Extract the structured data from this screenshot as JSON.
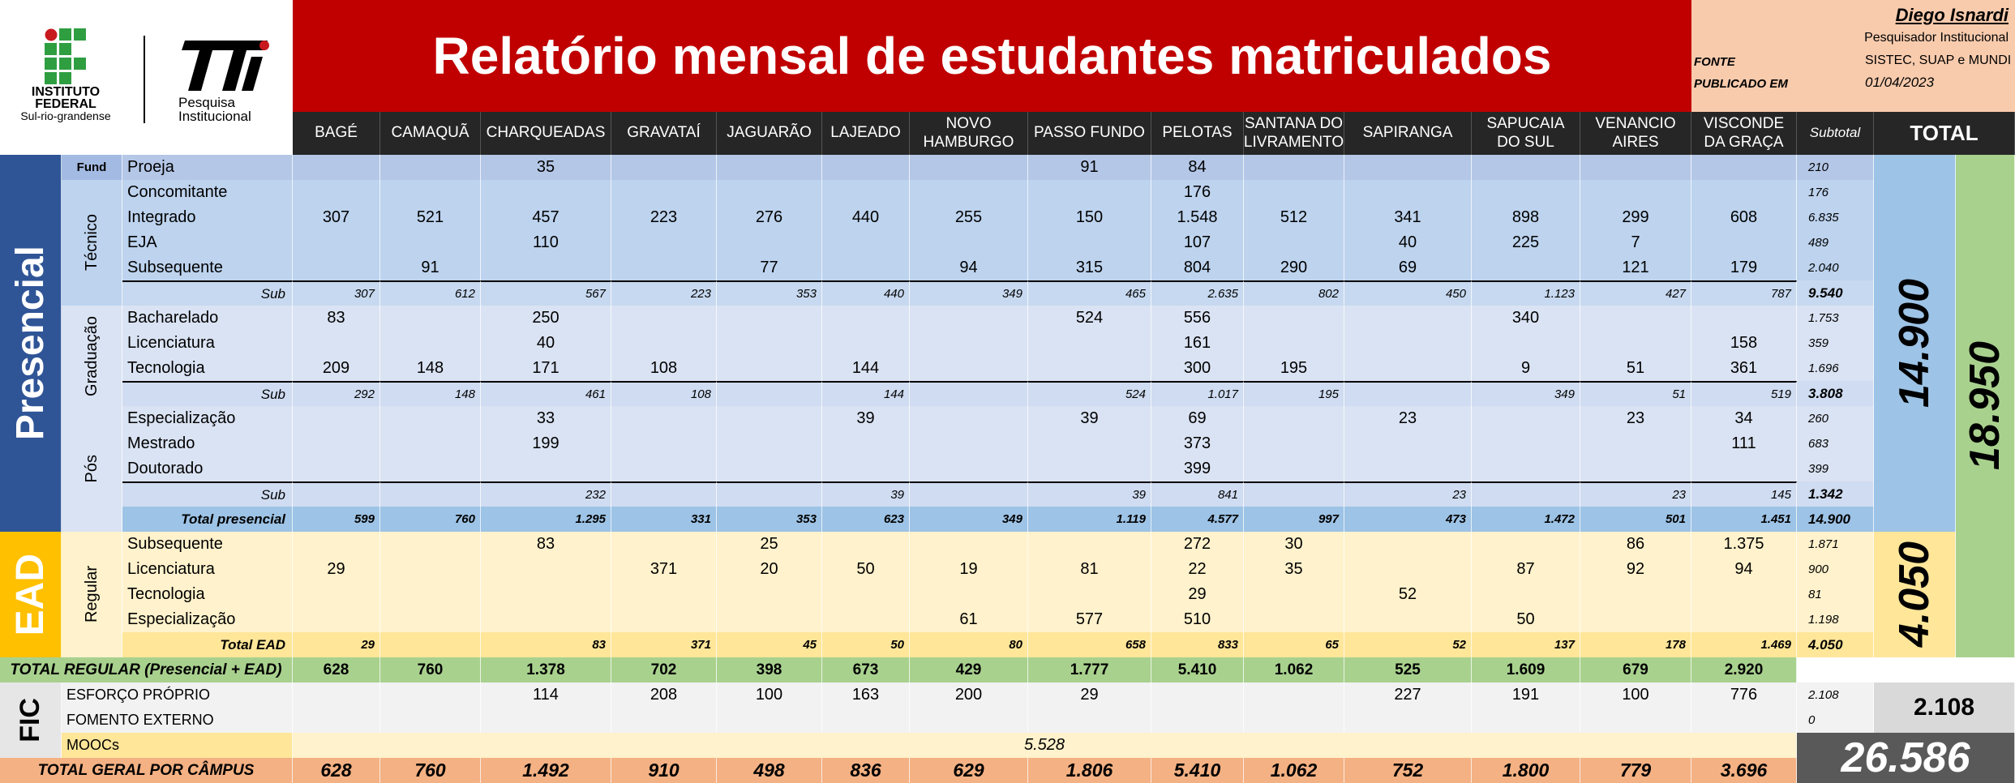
{
  "header": {
    "institution": [
      "INSTITUTO",
      "FEDERAL",
      "Sul-rio-grandense"
    ],
    "unit": [
      "Pesquisa",
      "Institucional"
    ],
    "title": "Relatório mensal de estudantes matriculados",
    "author": "Diego Isnardi",
    "role": "Pesquisador Institucional",
    "source_label": "FONTE",
    "source": "SISTEC, SUAP e MUNDI",
    "published_label": "PUBLICADO EM",
    "published": "01/04/2023"
  },
  "table": {
    "columns": [
      "BAGÉ",
      "CAMAQUÃ",
      "CHARQUEADAS",
      "GRAVATAÍ",
      "JAGUARÃO",
      "LAJEADO",
      "NOVO HAMBURGO",
      "PASSO FUNDO",
      "PELOTAS",
      "SANTANA DO LIVRAMENTO",
      "SAPIRANGA",
      "SAPUCAIA DO SUL",
      "VENANCIO AIRES",
      "VISCONDE DA GRAÇA"
    ],
    "subtotal_header": "Subtotal",
    "total_header": "TOTAL",
    "presencial": {
      "label": "Presencial",
      "total": "14.900",
      "fund": {
        "label": "Fund",
        "rows": [
          {
            "label": "Proeja",
            "values": [
              null,
              null,
              "35",
              null,
              null,
              null,
              null,
              "91",
              "84",
              null,
              null,
              null,
              null,
              null
            ],
            "subtotal": "210"
          }
        ]
      },
      "tecnico": {
        "label": "Técnico",
        "rows": [
          {
            "label": "Concomitante",
            "values": [
              null,
              null,
              null,
              null,
              null,
              null,
              null,
              null,
              "176",
              null,
              null,
              null,
              null,
              null
            ],
            "subtotal": "176"
          },
          {
            "label": "Integrado",
            "values": [
              "307",
              "521",
              "457",
              "223",
              "276",
              "440",
              "255",
              "150",
              "1.548",
              "512",
              "341",
              "898",
              "299",
              "608"
            ],
            "subtotal": "6.835"
          },
          {
            "label": "EJA",
            "values": [
              null,
              null,
              "110",
              null,
              null,
              null,
              null,
              null,
              "107",
              null,
              "40",
              "225",
              "7",
              null
            ],
            "subtotal": "489"
          },
          {
            "label": "Subsequente",
            "values": [
              null,
              "91",
              null,
              null,
              "77",
              null,
              "94",
              "315",
              "804",
              "290",
              "69",
              null,
              "121",
              "179"
            ],
            "subtotal": "2.040"
          }
        ],
        "sub": {
          "label": "Sub",
          "values": [
            "307",
            "612",
            "567",
            "223",
            "353",
            "440",
            "349",
            "465",
            "2.635",
            "802",
            "450",
            "1.123",
            "427",
            "787"
          ],
          "subtotal": "9.540"
        }
      },
      "graduacao": {
        "label": "Graduação",
        "rows": [
          {
            "label": "Bacharelado",
            "values": [
              "83",
              null,
              "250",
              null,
              null,
              null,
              null,
              "524",
              "556",
              null,
              null,
              "340",
              null,
              null
            ],
            "subtotal": "1.753"
          },
          {
            "label": "Licenciatura",
            "values": [
              null,
              null,
              "40",
              null,
              null,
              null,
              null,
              null,
              "161",
              null,
              null,
              null,
              null,
              "158"
            ],
            "subtotal": "359"
          },
          {
            "label": "Tecnologia",
            "values": [
              "209",
              "148",
              "171",
              "108",
              null,
              "144",
              null,
              null,
              "300",
              "195",
              null,
              "9",
              "51",
              "361"
            ],
            "subtotal": "1.696"
          }
        ],
        "sub": {
          "label": "Sub",
          "values": [
            "292",
            "148",
            "461",
            "108",
            null,
            "144",
            null,
            "524",
            "1.017",
            "195",
            null,
            "349",
            "51",
            "519"
          ],
          "subtotal": "3.808"
        }
      },
      "pos": {
        "label": "Pós",
        "rows": [
          {
            "label": "Especialização",
            "values": [
              null,
              null,
              "33",
              null,
              null,
              "39",
              null,
              "39",
              "69",
              null,
              "23",
              null,
              "23",
              "34"
            ],
            "subtotal": "260"
          },
          {
            "label": "Mestrado",
            "values": [
              null,
              null,
              "199",
              null,
              null,
              null,
              null,
              null,
              "373",
              null,
              null,
              null,
              null,
              "111"
            ],
            "subtotal": "683"
          },
          {
            "label": "Doutorado",
            "values": [
              null,
              null,
              null,
              null,
              null,
              null,
              null,
              null,
              "399",
              null,
              null,
              null,
              null,
              null
            ],
            "subtotal": "399"
          }
        ],
        "sub": {
          "label": "Sub",
          "values": [
            null,
            null,
            "232",
            null,
            null,
            "39",
            null,
            "39",
            "841",
            null,
            "23",
            null,
            "23",
            "145"
          ],
          "subtotal": "1.342"
        }
      },
      "total_row": {
        "label": "Total presencial",
        "values": [
          "599",
          "760",
          "1.295",
          "331",
          "353",
          "623",
          "349",
          "1.119",
          "4.577",
          "997",
          "473",
          "1.472",
          "501",
          "1.451"
        ],
        "subtotal": "14.900"
      }
    },
    "ead": {
      "label": "EAD",
      "total": "4.050",
      "regular": {
        "label": "Regular",
        "rows": [
          {
            "label": "Subsequente",
            "values": [
              null,
              null,
              "83",
              null,
              "25",
              null,
              null,
              null,
              "272",
              "30",
              null,
              null,
              "86",
              "1.375"
            ],
            "subtotal": "1.871"
          },
          {
            "label": "Licenciatura",
            "values": [
              "29",
              null,
              null,
              "371",
              "20",
              "50",
              "19",
              "81",
              "22",
              "35",
              null,
              "87",
              "92",
              "94"
            ],
            "subtotal": "900"
          },
          {
            "label": "Tecnologia",
            "values": [
              null,
              null,
              null,
              null,
              null,
              null,
              null,
              null,
              "29",
              null,
              "52",
              null,
              null,
              null
            ],
            "subtotal": "81"
          },
          {
            "label": "Especialização",
            "values": [
              null,
              null,
              null,
              null,
              null,
              null,
              "61",
              "577",
              "510",
              null,
              null,
              "50",
              null,
              null
            ],
            "subtotal": "1.198"
          }
        ]
      },
      "total_row": {
        "label": "Total EAD",
        "values": [
          "29",
          null,
          "83",
          "371",
          "45",
          "50",
          "80",
          "658",
          "833",
          "65",
          "52",
          "137",
          "178",
          "1.469"
        ],
        "subtotal": "4.050"
      }
    },
    "regular_total": "18.950",
    "total_regular": {
      "label": "TOTAL REGULAR (Presencial + EAD)",
      "values": [
        "628",
        "760",
        "1.378",
        "702",
        "398",
        "673",
        "429",
        "1.777",
        "5.410",
        "1.062",
        "525",
        "1.609",
        "679",
        "2.920"
      ]
    },
    "fic": {
      "label": "FIC",
      "total": "2.108",
      "rows": [
        {
          "label": "ESFORÇO PRÓPRIO",
          "values": [
            null,
            null,
            "114",
            "208",
            "100",
            "163",
            "200",
            "29",
            null,
            null,
            "227",
            "191",
            "100",
            "776"
          ],
          "subtotal": "2.108"
        },
        {
          "label": "FOMENTO EXTERNO",
          "values": [
            null,
            null,
            null,
            null,
            null,
            null,
            null,
            null,
            null,
            null,
            null,
            null,
            null,
            null
          ],
          "subtotal": "0"
        }
      ],
      "moocs": {
        "label": "MOOCs",
        "value": "5.528"
      }
    },
    "total_geral": {
      "label": "TOTAL GERAL POR CÂMPUS",
      "values": [
        "628",
        "760",
        "1.492",
        "910",
        "498",
        "836",
        "629",
        "1.806",
        "5.410",
        "1.062",
        "752",
        "1.800",
        "779",
        "3.696"
      ]
    },
    "grand_total": "26.586"
  }
}
